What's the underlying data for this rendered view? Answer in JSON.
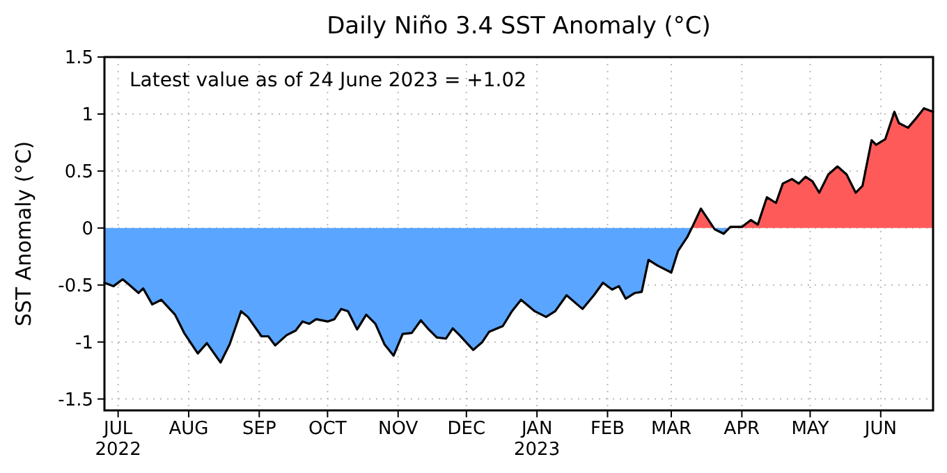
{
  "chart_data": {
    "type": "area",
    "title": "Daily Niño 3.4 SST Anomaly (°C)",
    "ylabel": "SST Anomaly (°C)",
    "annotations": [
      "Latest value as of 24 June 2023 = +1.02"
    ],
    "xlim": [
      "2022-06-25",
      "2023-06-24"
    ],
    "xticks": [
      {
        "value": "2022-07-01",
        "label": "JUL\n2022"
      },
      {
        "value": "2022-08-01",
        "label": "AUG"
      },
      {
        "value": "2022-09-01",
        "label": "SEP"
      },
      {
        "value": "2022-10-01",
        "label": "OCT"
      },
      {
        "value": "2022-11-01",
        "label": "NOV"
      },
      {
        "value": "2022-12-01",
        "label": "DEC"
      },
      {
        "value": "2023-01-01",
        "label": "JAN\n2023"
      },
      {
        "value": "2023-02-01",
        "label": "FEB"
      },
      {
        "value": "2023-03-01",
        "label": "MAR"
      },
      {
        "value": "2023-04-01",
        "label": "APR"
      },
      {
        "value": "2023-05-01",
        "label": "MAY"
      },
      {
        "value": "2023-06-01",
        "label": "JUN"
      }
    ],
    "ylim": [
      -1.6,
      1.5
    ],
    "yticks": [
      -1.5,
      -1,
      -0.5,
      0,
      0.5,
      1,
      1.5
    ],
    "grid": true,
    "x": [
      "2022-06-25",
      "2022-06-29",
      "2022-07-03",
      "2022-07-06",
      "2022-07-10",
      "2022-07-12",
      "2022-07-16",
      "2022-07-20",
      "2022-07-26",
      "2022-07-30",
      "2022-08-05",
      "2022-08-09",
      "2022-08-15",
      "2022-08-19",
      "2022-08-24",
      "2022-08-27",
      "2022-09-02",
      "2022-09-05",
      "2022-09-08",
      "2022-09-13",
      "2022-09-17",
      "2022-09-20",
      "2022-09-23",
      "2022-09-26",
      "2022-10-01",
      "2022-10-04",
      "2022-10-07",
      "2022-10-10",
      "2022-10-14",
      "2022-10-18",
      "2022-10-22",
      "2022-10-26",
      "2022-10-30",
      "2022-11-03",
      "2022-11-07",
      "2022-11-11",
      "2022-11-14",
      "2022-11-18",
      "2022-11-22",
      "2022-11-25",
      "2022-11-28",
      "2022-12-04",
      "2022-12-08",
      "2022-12-11",
      "2022-12-17",
      "2022-12-21",
      "2022-12-25",
      "2022-12-31",
      "2023-01-05",
      "2023-01-09",
      "2023-01-14",
      "2023-01-21",
      "2023-01-26",
      "2023-01-30",
      "2023-02-03",
      "2023-02-06",
      "2023-02-09",
      "2023-02-13",
      "2023-02-16",
      "2023-02-19",
      "2023-02-23",
      "2023-03-01",
      "2023-03-04",
      "2023-03-08",
      "2023-03-10",
      "2023-03-14",
      "2023-03-17",
      "2023-03-20",
      "2023-03-24",
      "2023-03-27",
      "2023-04-01",
      "2023-04-05",
      "2023-04-08",
      "2023-04-12",
      "2023-04-16",
      "2023-04-19",
      "2023-04-23",
      "2023-04-26",
      "2023-04-29",
      "2023-05-02",
      "2023-05-05",
      "2023-05-09",
      "2023-05-13",
      "2023-05-17",
      "2023-05-21",
      "2023-05-24",
      "2023-05-28",
      "2023-05-30",
      "2023-06-03",
      "2023-06-07",
      "2023-06-09",
      "2023-06-13",
      "2023-06-16",
      "2023-06-20",
      "2023-06-24"
    ],
    "series": [
      {
        "color": "#000000",
        "colors": [
          "#5aa5ff",
          "#5aa5ff",
          "#5aa5ff",
          "#5aa5ff",
          "#5aa5ff",
          "#5aa5ff",
          "#5aa5ff",
          "#5aa5ff",
          "#5aa5ff",
          "#5aa5ff",
          "#5aa5ff",
          "#5aa5ff",
          "#5aa5ff",
          "#5aa5ff",
          "#5aa5ff",
          "#5aa5ff",
          "#5aa5ff",
          "#5aa5ff",
          "#5aa5ff",
          "#5aa5ff",
          "#5aa5ff",
          "#5aa5ff",
          "#5aa5ff",
          "#5aa5ff",
          "#5aa5ff",
          "#5aa5ff",
          "#5aa5ff",
          "#5aa5ff",
          "#5aa5ff",
          "#5aa5ff",
          "#5aa5ff",
          "#5aa5ff",
          "#5aa5ff",
          "#5aa5ff",
          "#5aa5ff",
          "#5aa5ff",
          "#5aa5ff",
          "#5aa5ff",
          "#5aa5ff",
          "#5aa5ff",
          "#5aa5ff",
          "#5aa5ff",
          "#5aa5ff",
          "#5aa5ff",
          "#5aa5ff",
          "#5aa5ff",
          "#5aa5ff",
          "#5aa5ff",
          "#5aa5ff",
          "#5aa5ff",
          "#5aa5ff",
          "#5aa5ff",
          "#5aa5ff",
          "#5aa5ff",
          "#5aa5ff",
          "#5aa5ff",
          "#5aa5ff",
          "#5aa5ff",
          "#5aa5ff",
          "#5aa5ff",
          "#5aa5ff",
          "#5aa5ff",
          "#5aa5ff",
          "#5aa5ff",
          "#5aa5ff",
          "#ff5a5a",
          "#ff5a5a",
          "#5aa5ff",
          "#5aa5ff",
          "#ff5a5a",
          "#ff5a5a",
          "#ff5a5a",
          "#ff5a5a",
          "#ff5a5a",
          "#ff5a5a",
          "#ff5a5a",
          "#ff5a5a",
          "#ff5a5a",
          "#ff5a5a",
          "#ff5a5a",
          "#ff5a5a",
          "#ff5a5a",
          "#ff5a5a",
          "#ff5a5a",
          "#ff5a5a",
          "#ff5a5a",
          "#ff5a5a",
          "#ff5a5a",
          "#ff5a5a",
          "#ff5a5a",
          "#ff5a5a",
          "#ff5a5a",
          "#ff5a5a",
          "#ff5a5a",
          "#ff5a5a"
        ],
        "values": [
          -0.48,
          -0.51,
          -0.45,
          -0.5,
          -0.57,
          -0.53,
          -0.67,
          -0.63,
          -0.76,
          -0.92,
          -1.1,
          -1.01,
          -1.18,
          -1.02,
          -0.73,
          -0.78,
          -0.95,
          -0.95,
          -1.03,
          -0.94,
          -0.9,
          -0.82,
          -0.84,
          -0.8,
          -0.82,
          -0.8,
          -0.71,
          -0.73,
          -0.89,
          -0.76,
          -0.84,
          -1.02,
          -1.12,
          -0.93,
          -0.92,
          -0.81,
          -0.88,
          -0.96,
          -0.97,
          -0.88,
          -0.94,
          -1.07,
          -1.0,
          -0.91,
          -0.86,
          -0.73,
          -0.63,
          -0.73,
          -0.78,
          -0.73,
          -0.59,
          -0.71,
          -0.59,
          -0.48,
          -0.54,
          -0.51,
          -0.62,
          -0.57,
          -0.56,
          -0.28,
          -0.33,
          -0.39,
          -0.2,
          -0.08,
          0.0,
          0.17,
          0.08,
          -0.01,
          -0.05,
          0.01,
          0.01,
          0.07,
          0.03,
          0.27,
          0.22,
          0.39,
          0.43,
          0.39,
          0.45,
          0.41,
          0.31,
          0.47,
          0.54,
          0.47,
          0.31,
          0.37,
          0.77,
          0.73,
          0.78,
          1.02,
          0.92,
          0.88,
          0.95,
          1.05,
          1.02
        ]
      }
    ]
  }
}
